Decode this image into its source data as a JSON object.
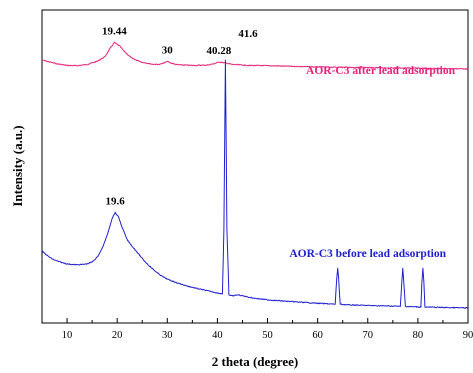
{
  "chart_data": {
    "type": "line",
    "xlabel": "2 theta (degree)",
    "ylabel": "Intensity (a.u.)",
    "xlim": [
      5,
      90
    ],
    "ylim": [
      0,
      100
    ],
    "xticks": [
      10,
      20,
      30,
      40,
      50,
      60,
      70,
      80,
      90
    ],
    "grid": false,
    "y_ticks_labeled": false,
    "series": [
      {
        "name": "AOR-C3 after lead adsorption",
        "color": "#e8227a",
        "points": [
          [
            5,
            84.0
          ],
          [
            8,
            82.8
          ],
          [
            10,
            82.3
          ],
          [
            12,
            82.2
          ],
          [
            14,
            82.6
          ],
          [
            16,
            83.6
          ],
          [
            17.5,
            85.0
          ],
          [
            18.5,
            87.5
          ],
          [
            19.44,
            89.6
          ],
          [
            20.5,
            88.5
          ],
          [
            21.5,
            86.6
          ],
          [
            23,
            84.5
          ],
          [
            25,
            83.3
          ],
          [
            27,
            82.7
          ],
          [
            28.5,
            82.6
          ],
          [
            29.5,
            83.2
          ],
          [
            30,
            83.6
          ],
          [
            30.6,
            83.1
          ],
          [
            32,
            82.5
          ],
          [
            35,
            82.3
          ],
          [
            38,
            82.4
          ],
          [
            39.5,
            82.9
          ],
          [
            40.28,
            83.4
          ],
          [
            41.5,
            83.1
          ],
          [
            43,
            82.6
          ],
          [
            46,
            82.3
          ],
          [
            50,
            82.2
          ],
          [
            55,
            82.0
          ],
          [
            60,
            81.8
          ],
          [
            65,
            81.7
          ],
          [
            70,
            81.6
          ],
          [
            75,
            81.5
          ],
          [
            80,
            81.4
          ],
          [
            85,
            81.3
          ],
          [
            90,
            81.2
          ]
        ],
        "labels": [
          {
            "text": "19.44",
            "x": 19.44,
            "y": 89.6
          },
          {
            "text": "30",
            "x": 30,
            "y": 83.6
          },
          {
            "text": "40.28",
            "x": 40.28,
            "y": 83.4
          }
        ]
      },
      {
        "name": "AOR-C3 before lead adsorption",
        "color": "#2020d0",
        "points": [
          [
            5,
            23.0
          ],
          [
            6,
            21.6
          ],
          [
            7,
            20.5
          ],
          [
            8,
            19.8
          ],
          [
            9,
            19.3
          ],
          [
            10,
            18.9
          ],
          [
            11,
            18.7
          ],
          [
            12,
            18.6
          ],
          [
            13,
            18.7
          ],
          [
            14,
            18.9
          ],
          [
            15,
            19.5
          ],
          [
            16,
            21.0
          ],
          [
            17,
            23.8
          ],
          [
            18,
            28.0
          ],
          [
            19,
            33.5
          ],
          [
            19.6,
            35.3
          ],
          [
            20.3,
            33.8
          ],
          [
            21,
            30.5
          ],
          [
            22,
            26.6
          ],
          [
            23,
            24.5
          ],
          [
            24,
            22.6
          ],
          [
            25,
            20.6
          ],
          [
            26,
            18.9
          ],
          [
            27,
            17.4
          ],
          [
            28,
            16.0
          ],
          [
            29,
            14.9
          ],
          [
            30,
            14.0
          ],
          [
            32,
            12.8
          ],
          [
            34,
            11.8
          ],
          [
            36,
            11.0
          ],
          [
            38,
            10.3
          ],
          [
            40,
            9.6
          ],
          [
            41,
            9.3
          ],
          [
            41.3,
            30.0
          ],
          [
            41.6,
            84.0
          ],
          [
            41.9,
            30.0
          ],
          [
            42.3,
            9.0
          ],
          [
            43,
            8.6
          ],
          [
            44,
            9.0
          ],
          [
            45,
            8.7
          ],
          [
            47,
            8.0
          ],
          [
            50,
            7.4
          ],
          [
            55,
            6.8
          ],
          [
            60,
            6.3
          ],
          [
            63.5,
            6.0
          ],
          [
            63.8,
            14.0
          ],
          [
            64.0,
            17.5
          ],
          [
            64.2,
            14.0
          ],
          [
            64.5,
            6.0
          ],
          [
            66,
            5.8
          ],
          [
            70,
            5.6
          ],
          [
            75,
            5.4
          ],
          [
            76.5,
            5.3
          ],
          [
            76.8,
            13.0
          ],
          [
            77.0,
            17.5
          ],
          [
            77.2,
            13.0
          ],
          [
            77.5,
            5.3
          ],
          [
            79,
            5.2
          ],
          [
            80.6,
            5.1
          ],
          [
            80.8,
            13.0
          ],
          [
            81.0,
            17.5
          ],
          [
            81.2,
            13.0
          ],
          [
            81.4,
            5.1
          ],
          [
            84,
            5.0
          ],
          [
            87,
            4.9
          ],
          [
            90,
            4.8
          ]
        ],
        "labels": [
          {
            "text": "19.6",
            "x": 19.6,
            "y": 35.3
          },
          {
            "text": "41.6",
            "x": 41.6,
            "y": 84.0
          }
        ]
      }
    ]
  }
}
